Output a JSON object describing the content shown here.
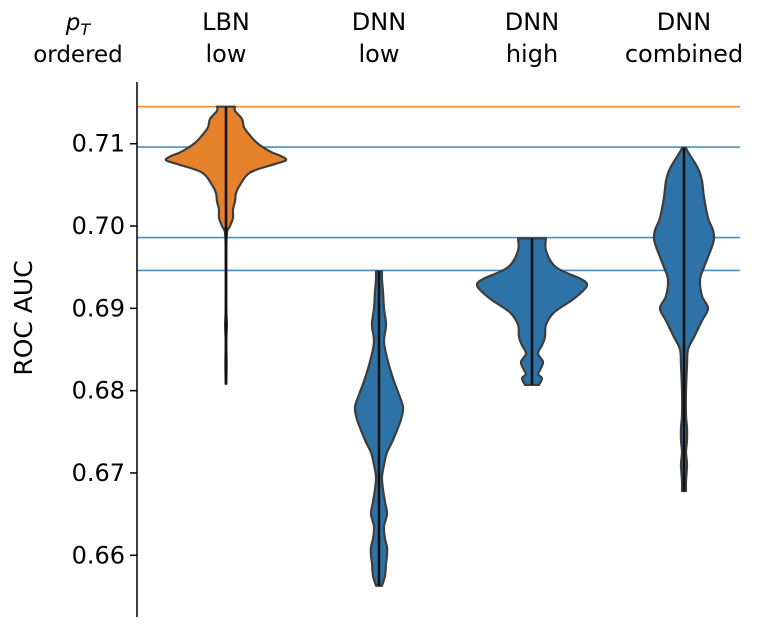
{
  "chart_data": {
    "type": "violin",
    "ylabel": "ROC AUC",
    "ylim": [
      0.6525,
      0.7175
    ],
    "yticks": [
      "0.66",
      "0.67",
      "0.68",
      "0.69",
      "0.70",
      "0.71"
    ],
    "ytick_values": [
      0.66,
      0.67,
      0.68,
      0.69,
      0.7,
      0.71
    ],
    "corner_label": {
      "main": "p",
      "sub": "T",
      "line2": "ordered"
    },
    "categories": [
      {
        "line1": "LBN",
        "line2": "low"
      },
      {
        "line1": "DNN",
        "line2": "low"
      },
      {
        "line1": "DNN",
        "line2": "high"
      },
      {
        "line1": "DNN",
        "line2": "combined"
      }
    ],
    "series": [
      {
        "name": "LBN low",
        "color": "#e5812b",
        "min": 0.6808,
        "max": 0.7145,
        "profile": [
          [
            0.6808,
            0.2
          ],
          [
            0.683,
            0.6
          ],
          [
            0.686,
            0.3
          ],
          [
            0.688,
            0.9
          ],
          [
            0.69,
            0.3
          ],
          [
            0.695,
            0.3
          ],
          [
            0.699,
            0.8
          ],
          [
            0.7,
            4
          ],
          [
            0.701,
            7
          ],
          [
            0.702,
            7
          ],
          [
            0.703,
            9
          ],
          [
            0.704,
            10
          ],
          [
            0.705,
            14
          ],
          [
            0.7065,
            24
          ],
          [
            0.7075,
            48
          ],
          [
            0.708,
            60
          ],
          [
            0.7085,
            55
          ],
          [
            0.709,
            45
          ],
          [
            0.71,
            32
          ],
          [
            0.711,
            24
          ],
          [
            0.712,
            18
          ],
          [
            0.713,
            16
          ],
          [
            0.714,
            9
          ],
          [
            0.7145,
            9
          ]
        ]
      },
      {
        "name": "DNN low",
        "color": "#2d73a8",
        "min": 0.6563,
        "max": 0.6945,
        "profile": [
          [
            0.6563,
            3
          ],
          [
            0.6575,
            6
          ],
          [
            0.659,
            7
          ],
          [
            0.66,
            8
          ],
          [
            0.661,
            8
          ],
          [
            0.662,
            6
          ],
          [
            0.6635,
            5
          ],
          [
            0.665,
            8
          ],
          [
            0.6665,
            6
          ],
          [
            0.668,
            4
          ],
          [
            0.6695,
            3
          ],
          [
            0.671,
            5
          ],
          [
            0.6725,
            8
          ],
          [
            0.674,
            14
          ],
          [
            0.6765,
            22
          ],
          [
            0.678,
            24
          ],
          [
            0.6795,
            20
          ],
          [
            0.6815,
            14
          ],
          [
            0.684,
            8
          ],
          [
            0.686,
            5
          ],
          [
            0.688,
            7
          ],
          [
            0.69,
            5
          ],
          [
            0.692,
            4
          ],
          [
            0.6935,
            3
          ],
          [
            0.6945,
            3
          ]
        ]
      },
      {
        "name": "DNN high",
        "color": "#2d73a8",
        "min": 0.6807,
        "max": 0.6985,
        "profile": [
          [
            0.6807,
            7
          ],
          [
            0.6815,
            10
          ],
          [
            0.682,
            6
          ],
          [
            0.6825,
            8
          ],
          [
            0.6835,
            11
          ],
          [
            0.6845,
            6
          ],
          [
            0.6855,
            10
          ],
          [
            0.6865,
            13
          ],
          [
            0.688,
            14
          ],
          [
            0.6895,
            22
          ],
          [
            0.691,
            40
          ],
          [
            0.692,
            50
          ],
          [
            0.6928,
            55
          ],
          [
            0.6935,
            50
          ],
          [
            0.695,
            24
          ],
          [
            0.697,
            14
          ],
          [
            0.6985,
            14
          ]
        ]
      },
      {
        "name": "DNN combined",
        "color": "#2d73a8",
        "min": 0.6678,
        "max": 0.7095,
        "profile": [
          [
            0.6678,
            2
          ],
          [
            0.669,
            2
          ],
          [
            0.671,
            3
          ],
          [
            0.6725,
            2
          ],
          [
            0.674,
            3
          ],
          [
            0.6755,
            3
          ],
          [
            0.677,
            2
          ],
          [
            0.68,
            2
          ],
          [
            0.683,
            3
          ],
          [
            0.685,
            4
          ],
          [
            0.6865,
            10
          ],
          [
            0.6885,
            18
          ],
          [
            0.69,
            24
          ],
          [
            0.6915,
            18
          ],
          [
            0.6935,
            16
          ],
          [
            0.695,
            20
          ],
          [
            0.6975,
            28
          ],
          [
            0.6985,
            30
          ],
          [
            0.6995,
            29
          ],
          [
            0.701,
            24
          ],
          [
            0.7035,
            20
          ],
          [
            0.7055,
            18
          ],
          [
            0.707,
            14
          ],
          [
            0.709,
            4
          ],
          [
            0.7095,
            2
          ]
        ]
      }
    ],
    "reference_lines": [
      {
        "value": 0.7145,
        "color": "#ee8b2f"
      },
      {
        "value": 0.7096,
        "color": "#4d8fc2"
      },
      {
        "value": 0.6986,
        "color": "#4d8fc2"
      },
      {
        "value": 0.6946,
        "color": "#4d8fc2"
      }
    ]
  }
}
